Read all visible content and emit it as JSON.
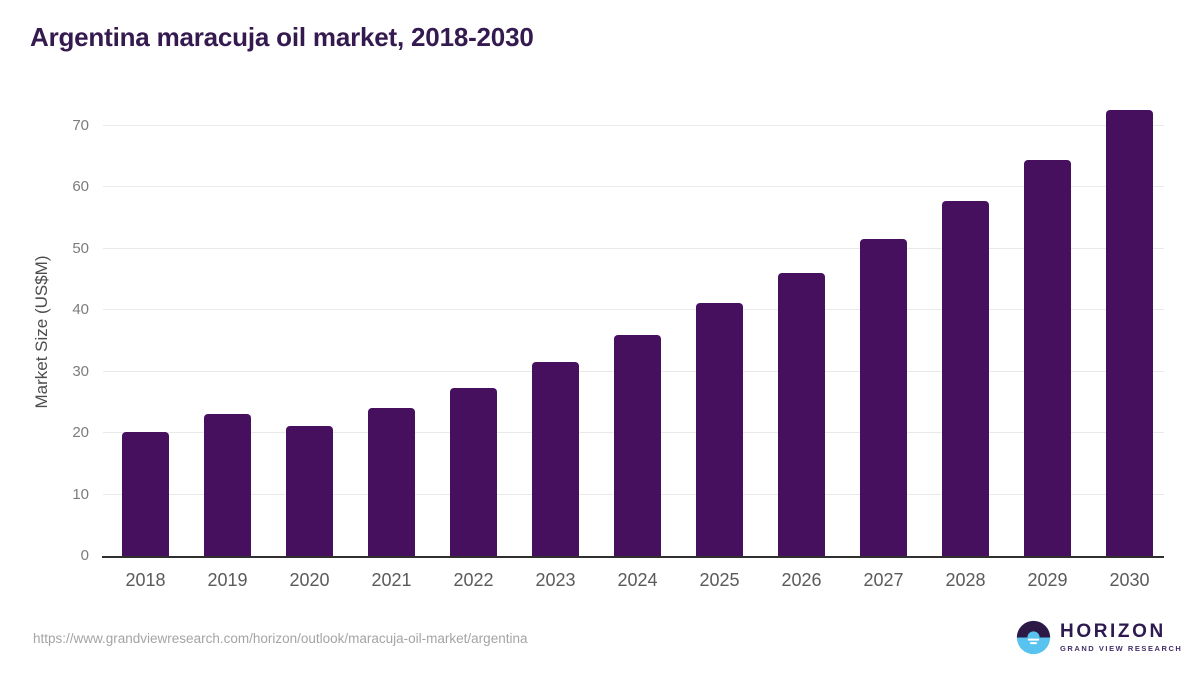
{
  "title": "Argentina maracuja oil market, 2018-2030",
  "source_url": "https://www.grandviewresearch.com/horizon/outlook/maracuja-oil-market/argentina",
  "logo": {
    "name": "HORIZON",
    "subtitle": "GRAND VIEW RESEARCH"
  },
  "colors": {
    "bar": "#46105e",
    "title": "#351a50",
    "grid": "#e9e9e9",
    "axis": "#2f2f2f",
    "y_tick": "#7c7c7c",
    "x_label": "#5a5a5a",
    "url": "#a4a4a4",
    "logo_dark_purple": "#2c1946",
    "logo_light_blue": "#58c3ee"
  },
  "chart_data": {
    "type": "bar",
    "title": "Argentina maracuja oil market, 2018-2030",
    "categories": [
      "2018",
      "2019",
      "2020",
      "2021",
      "2022",
      "2023",
      "2024",
      "2025",
      "2026",
      "2027",
      "2028",
      "2029",
      "2030"
    ],
    "values": [
      20.2,
      23.1,
      21.1,
      24.1,
      27.4,
      31.5,
      35.9,
      41.2,
      46.1,
      51.5,
      57.7,
      64.5,
      72.5
    ],
    "xlabel": "",
    "ylabel": "Market Size (US$M)",
    "ylim": [
      0,
      75
    ],
    "yticks": [
      0,
      10,
      20,
      30,
      40,
      50,
      60,
      70
    ],
    "grid": true,
    "legend": false,
    "bar_color": "#46105e"
  }
}
